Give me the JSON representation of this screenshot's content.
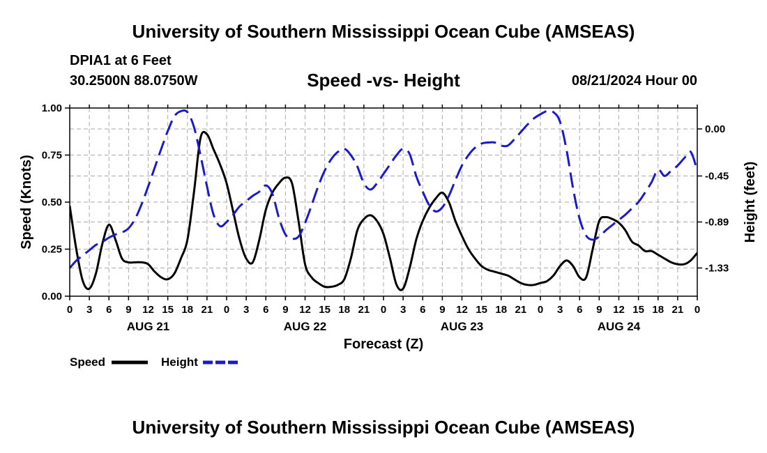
{
  "header": {
    "title": "University of Southern Mississippi Ocean Cube (AMSEAS)",
    "station": "DPIA1 at 6 Feet",
    "coords": "30.2500N  88.0750W",
    "chart_title": "Speed -vs- Height",
    "datetime": "08/21/2024 Hour 00"
  },
  "footer": {
    "title": "University of Southern Mississippi Ocean Cube (AMSEAS)"
  },
  "colors": {
    "speed": "#000000",
    "height": "#1a1acc",
    "grid": "#aaaaaa"
  },
  "chart_data": {
    "type": "line",
    "xlabel": "Forecast (Z)",
    "ylabel": "Speed (Knots)",
    "y2label": "Height (feet)",
    "xlim": [
      0,
      96
    ],
    "ylim": [
      0,
      1
    ],
    "y2lim": [
      -1.6,
      0.2
    ],
    "x_ticks": [
      0,
      3,
      6,
      9,
      12,
      15,
      18,
      21,
      24,
      27,
      30,
      33,
      36,
      39,
      42,
      45,
      48,
      51,
      54,
      57,
      60,
      63,
      66,
      69,
      72,
      75,
      78,
      81,
      84,
      87,
      90,
      93,
      96
    ],
    "x_tick_labels": [
      "0",
      "3",
      "6",
      "9",
      "12",
      "15",
      "18",
      "21",
      "0",
      "3",
      "6",
      "9",
      "12",
      "15",
      "18",
      "21",
      "0",
      "3",
      "6",
      "9",
      "12",
      "15",
      "18",
      "21",
      "0",
      "3",
      "6",
      "9",
      "12",
      "15",
      "18",
      "21",
      "0"
    ],
    "y_ticks": [
      0,
      0.25,
      0.5,
      0.75,
      1.0
    ],
    "y_tick_labels": [
      "0.00",
      "0.25",
      "0.50",
      "0.75",
      "1.00"
    ],
    "y2_ticks": [
      -1.33,
      -0.89,
      -0.45,
      0.0
    ],
    "y2_tick_labels": [
      "-1.33",
      "-0.89",
      "-0.45",
      "0.00"
    ],
    "day_labels": [
      {
        "hour": 12,
        "label": "AUG 21"
      },
      {
        "hour": 36,
        "label": "AUG 22"
      },
      {
        "hour": 60,
        "label": "AUG 23"
      },
      {
        "hour": 84,
        "label": "AUG 24"
      }
    ],
    "legend": [
      {
        "name": "Speed",
        "series": "speed"
      },
      {
        "name": "Height",
        "series": "height"
      }
    ],
    "legend_position": "bottom-left",
    "series": [
      {
        "name": "Speed",
        "axis": "left",
        "key": "speed",
        "x": [
          0,
          1,
          2,
          3,
          4,
          5,
          6,
          7,
          8,
          9,
          10,
          11,
          12,
          13,
          14,
          15,
          16,
          17,
          18,
          19,
          20,
          21,
          22,
          23,
          24,
          25,
          26,
          27,
          28,
          29,
          30,
          31,
          32,
          33,
          34,
          35,
          36,
          37,
          38,
          39,
          40,
          41,
          42,
          43,
          44,
          45,
          46,
          47,
          48,
          49,
          50,
          51,
          52,
          53,
          54,
          55,
          56,
          57,
          58,
          59,
          60,
          61,
          62,
          63,
          64,
          65,
          66,
          67,
          68,
          69,
          70,
          71,
          72,
          73,
          74,
          75,
          76,
          77,
          78,
          79,
          80,
          81,
          82,
          83,
          84,
          85,
          86,
          87,
          88,
          89,
          90,
          91,
          92,
          93,
          94,
          95,
          96
        ],
        "y": [
          0.48,
          0.25,
          0.08,
          0.04,
          0.12,
          0.28,
          0.38,
          0.3,
          0.2,
          0.18,
          0.18,
          0.18,
          0.17,
          0.13,
          0.1,
          0.09,
          0.12,
          0.2,
          0.3,
          0.55,
          0.84,
          0.86,
          0.78,
          0.7,
          0.6,
          0.45,
          0.3,
          0.2,
          0.18,
          0.3,
          0.46,
          0.55,
          0.6,
          0.63,
          0.6,
          0.4,
          0.17,
          0.1,
          0.07,
          0.05,
          0.05,
          0.06,
          0.09,
          0.2,
          0.35,
          0.41,
          0.43,
          0.4,
          0.33,
          0.2,
          0.06,
          0.04,
          0.15,
          0.3,
          0.4,
          0.47,
          0.52,
          0.55,
          0.5,
          0.4,
          0.32,
          0.25,
          0.2,
          0.16,
          0.14,
          0.13,
          0.12,
          0.11,
          0.09,
          0.07,
          0.06,
          0.06,
          0.07,
          0.08,
          0.11,
          0.16,
          0.19,
          0.16,
          0.1,
          0.1,
          0.25,
          0.4,
          0.42,
          0.41,
          0.39,
          0.35,
          0.29,
          0.27,
          0.24,
          0.24,
          0.22,
          0.2,
          0.18,
          0.17,
          0.17,
          0.19,
          0.23
        ]
      },
      {
        "name": "Height",
        "axis": "right",
        "key": "height",
        "x": [
          0,
          1,
          2,
          3,
          4,
          5,
          6,
          7,
          8,
          9,
          10,
          11,
          12,
          13,
          14,
          15,
          16,
          17,
          18,
          19,
          20,
          21,
          22,
          23,
          24,
          25,
          26,
          27,
          28,
          29,
          30,
          31,
          32,
          33,
          34,
          35,
          36,
          37,
          38,
          39,
          40,
          41,
          42,
          43,
          44,
          45,
          46,
          47,
          48,
          49,
          50,
          51,
          52,
          53,
          54,
          55,
          56,
          57,
          58,
          59,
          60,
          61,
          62,
          63,
          64,
          65,
          66,
          67,
          68,
          69,
          70,
          71,
          72,
          73,
          74,
          75,
          76,
          77,
          78,
          79,
          80,
          81,
          82,
          83,
          84,
          85,
          86,
          87,
          88,
          89,
          90,
          91,
          92,
          93,
          94,
          95,
          96
        ],
        "y": [
          -1.33,
          -1.26,
          -1.21,
          -1.16,
          -1.11,
          -1.08,
          -1.04,
          -1.01,
          -0.99,
          -0.95,
          -0.86,
          -0.72,
          -0.55,
          -0.37,
          -0.19,
          -0.02,
          0.12,
          0.17,
          0.16,
          0.02,
          -0.25,
          -0.55,
          -0.82,
          -0.93,
          -0.89,
          -0.82,
          -0.74,
          -0.69,
          -0.64,
          -0.6,
          -0.54,
          -0.62,
          -0.85,
          -1.01,
          -1.05,
          -1.03,
          -0.9,
          -0.73,
          -0.55,
          -0.4,
          -0.29,
          -0.22,
          -0.19,
          -0.25,
          -0.36,
          -0.52,
          -0.58,
          -0.52,
          -0.43,
          -0.34,
          -0.25,
          -0.19,
          -0.24,
          -0.45,
          -0.6,
          -0.73,
          -0.79,
          -0.75,
          -0.64,
          -0.49,
          -0.35,
          -0.25,
          -0.18,
          -0.14,
          -0.13,
          -0.13,
          -0.16,
          -0.16,
          -0.1,
          -0.03,
          0.04,
          0.1,
          0.14,
          0.17,
          0.16,
          0.07,
          -0.2,
          -0.57,
          -0.86,
          -1.02,
          -1.06,
          -1.03,
          -0.97,
          -0.92,
          -0.87,
          -0.82,
          -0.76,
          -0.7,
          -0.61,
          -0.51,
          -0.39,
          -0.45,
          -0.4,
          -0.35,
          -0.28,
          -0.22,
          -0.4
        ]
      }
    ]
  }
}
